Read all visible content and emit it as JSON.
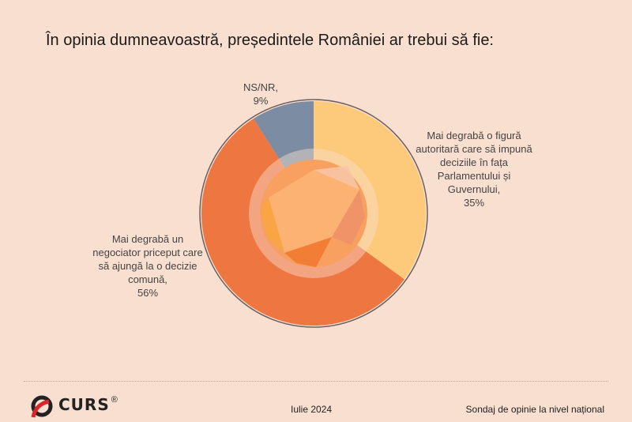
{
  "title": "În opinia dumneavoastră, președintele României  ar trebui să fie:",
  "chart_data": {
    "type": "pie",
    "style": "donut",
    "title": "În opinia dumneavoastră, președintele României  ar trebui să fie:",
    "slices": [
      {
        "label": "Mai degrabă o figură autoritară care să impună deciziile în fața Parlamentului și Guvernului,",
        "value": 35,
        "value_label": "35%",
        "color": "#fdc97a"
      },
      {
        "label": "Mai degrabă un negociator priceput care să ajungă la o decizie comună,",
        "value": 56,
        "value_label": "56%",
        "color": "#ee7640"
      },
      {
        "label": "NS/NR,",
        "value": 9,
        "value_label": "9%",
        "color": "#7c8da3"
      }
    ]
  },
  "footer": {
    "logo": "CURS",
    "registered": "®",
    "date": "Iulie 2024",
    "survey": "Sondaj de opinie la nivel național"
  }
}
